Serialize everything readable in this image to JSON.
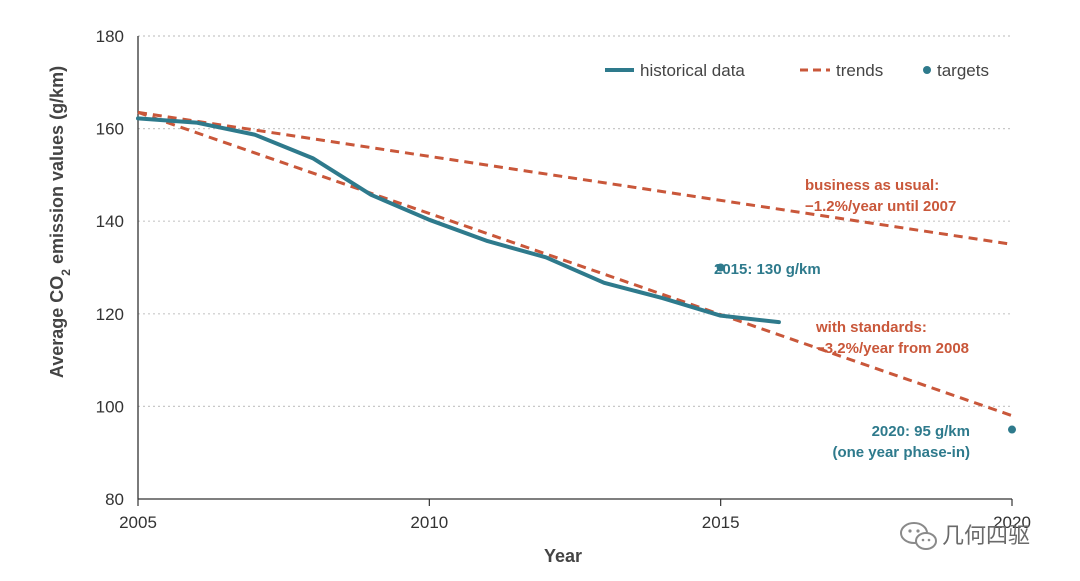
{
  "chart_data": {
    "type": "line",
    "xlabel": "Year",
    "ylabel_parts": [
      "Average CO",
      "2",
      " emission values (g/km)"
    ],
    "xlim": [
      2005,
      2020
    ],
    "ylim": [
      80,
      180
    ],
    "xticks": [
      2005,
      2010,
      2015,
      2020
    ],
    "yticks": [
      80,
      100,
      120,
      140,
      160,
      180
    ],
    "grid": "horizontal dotted",
    "legend_position": "top-right",
    "series": [
      {
        "name": "historical data",
        "style": "solid",
        "color": "#2e7a8c",
        "x": [
          2005,
          2006,
          2007,
          2008,
          2009,
          2010,
          2011,
          2012,
          2013,
          2014,
          2015,
          2016
        ],
        "y": [
          162.2,
          161.3,
          158.7,
          153.6,
          145.7,
          140.3,
          135.7,
          132.2,
          126.7,
          123.4,
          119.6,
          118.2
        ]
      },
      {
        "name": "trends",
        "style": "dashed",
        "color": "#c9573a",
        "lines": [
          {
            "label": "business as usual",
            "x": [
              2005,
              2020
            ],
            "y": [
              163.5,
              135
            ]
          },
          {
            "label": "with standards",
            "x": [
              2005,
              2020
            ],
            "y": [
              163.5,
              98
            ]
          }
        ]
      },
      {
        "name": "targets",
        "style": "points",
        "color": "#2e7a8c",
        "points": [
          {
            "x": 2015,
            "y": 130,
            "label": "2015: 130 g/km"
          },
          {
            "x": 2020,
            "y": 95,
            "label": "2020: 95 g/km",
            "label2": "(one year phase-in)"
          }
        ]
      }
    ],
    "annotations": [
      {
        "line1": "business as usual:",
        "line2": "−1.2%/year until 2007",
        "color": "#c9573a"
      },
      {
        "line1": "with standards:",
        "line2": "−3.2%/year from 2008",
        "color": "#c9573a"
      }
    ]
  },
  "watermark": {
    "text": "几何四驱",
    "icon": "wechat-icon"
  },
  "colors": {
    "historical": "#2e7a8c",
    "trend": "#c9573a",
    "target": "#2e7a8c",
    "grid": "#c8c8c8",
    "axis": "#333333"
  }
}
